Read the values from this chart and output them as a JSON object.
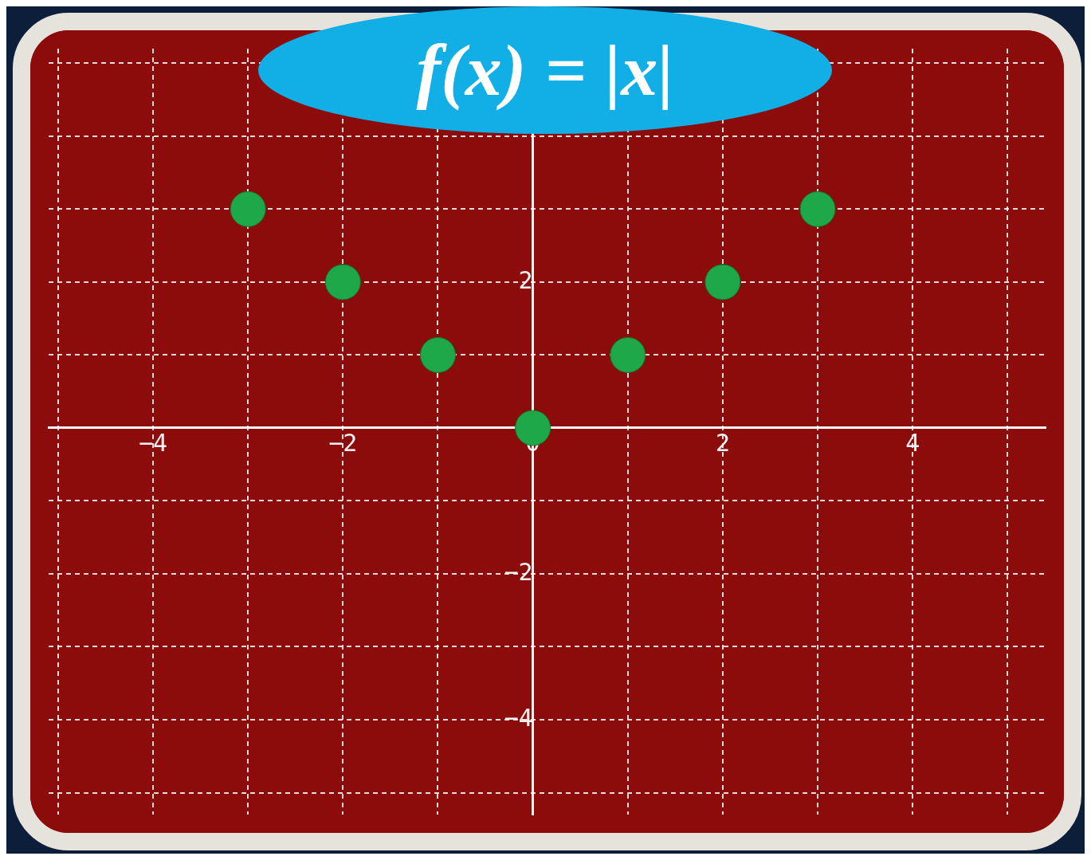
{
  "chart_data": {
    "type": "scatter",
    "title": "f(x) = |x|",
    "x": [
      -3,
      -2,
      -1,
      0,
      1,
      2,
      3
    ],
    "series": [
      {
        "color": "#1fa84a",
        "values": [
          3,
          2,
          1,
          0,
          1,
          2,
          3
        ]
      }
    ],
    "xlim": [
      -5.1,
      5.4
    ],
    "ylim": [
      -5.3,
      5.2
    ],
    "xticks": [
      {
        "value": -5,
        "label": null
      },
      -4,
      {
        "value": -3,
        "label": null
      },
      -2,
      {
        "value": -1,
        "label": null
      },
      0,
      {
        "value": 1,
        "label": null
      },
      2,
      {
        "value": 3,
        "label": null
      },
      4,
      {
        "value": 5,
        "label": null
      }
    ],
    "yticks": [
      {
        "value": -5,
        "label": null
      },
      -4,
      {
        "value": -3,
        "label": null
      },
      -2,
      {
        "value": -1,
        "label": null
      },
      {
        "value": 0,
        "label": null
      },
      {
        "value": 1,
        "label": null
      },
      2,
      {
        "value": 3,
        "label": null
      },
      {
        "value": 4,
        "label": null
      },
      {
        "value": 5,
        "label": null
      }
    ],
    "grid": true,
    "legend": false,
    "marker": "circle"
  }
}
